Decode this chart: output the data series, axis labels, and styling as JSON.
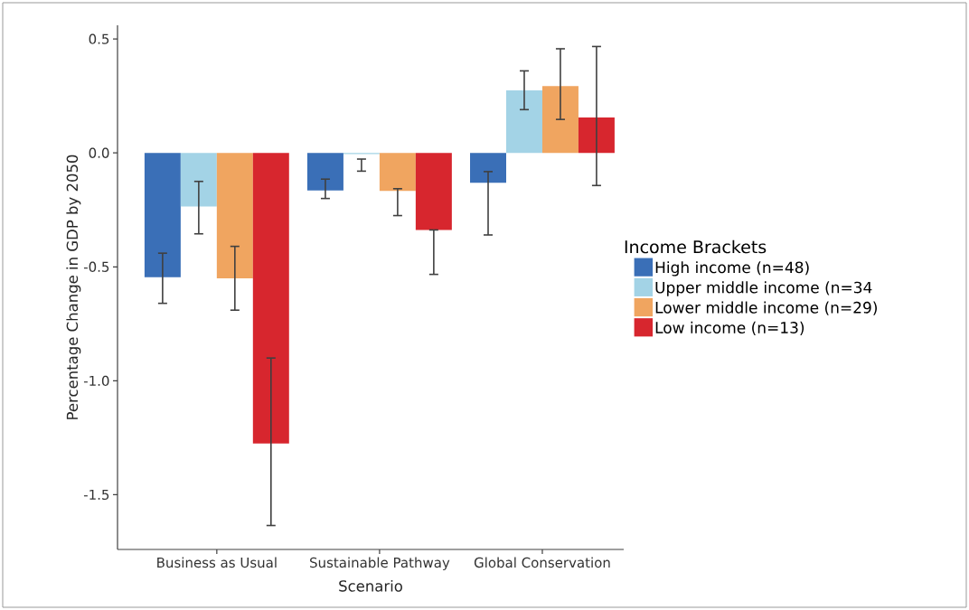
{
  "chart_data": {
    "type": "bar",
    "xlabel": "Scenario",
    "ylabel": "Percentage Change in GDP by 2050",
    "legend_title": "Income Brackets",
    "legend": "right",
    "categories": [
      "Business as Usual",
      "Sustainable Pathway",
      "Global Conservation"
    ],
    "series": [
      {
        "name": "High income (n=48)",
        "color": "#3a6fb7",
        "values": [
          -0.545,
          -0.165,
          -0.131
        ],
        "errors": [
          [
            -0.66,
            -0.44
          ],
          [
            -0.2,
            -0.115
          ],
          [
            -0.36,
            -0.082
          ]
        ]
      },
      {
        "name": "Upper middle income (n=34",
        "color": "#a3d3e6",
        "values": [
          -0.235,
          -0.005,
          0.274
        ],
        "errors": [
          [
            -0.355,
            -0.125
          ],
          [
            -0.08,
            -0.027
          ],
          [
            0.19,
            0.36
          ]
        ]
      },
      {
        "name": "Lower middle income (n=29)",
        "color": "#f0a560",
        "values": [
          -0.55,
          -0.167,
          0.293
        ],
        "errors": [
          [
            -0.69,
            -0.41
          ],
          [
            -0.275,
            -0.157
          ],
          [
            0.147,
            0.457
          ]
        ]
      },
      {
        "name": "Low income (n=13)",
        "color": "#d7262e",
        "values": [
          -1.275,
          -0.338,
          0.155
        ],
        "errors": [
          [
            -1.635,
            -0.9
          ],
          [
            -0.533,
            -0.338
          ],
          [
            -0.143,
            0.467
          ]
        ]
      }
    ],
    "ylim": [
      -1.74,
      0.56
    ],
    "yticks": [
      {
        "value": -1.5,
        "label": "-1.5"
      },
      {
        "value": -1.0,
        "label": "-1.0"
      },
      {
        "value": -0.5,
        "label": "-0.5"
      },
      {
        "value": 0.0,
        "label": "0.0"
      },
      {
        "value": 0.5,
        "label": "0.5"
      }
    ]
  }
}
